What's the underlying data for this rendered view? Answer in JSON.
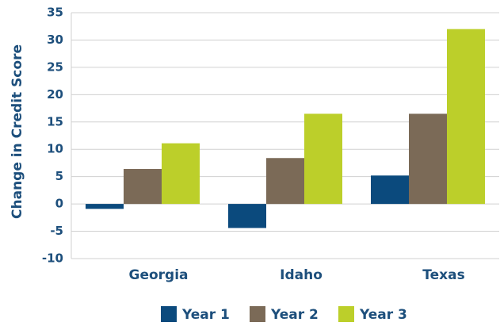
{
  "chart_data": {
    "type": "bar",
    "y_label": "Change in Credit Score",
    "categories": [
      "Georgia",
      "Idaho",
      "Texas"
    ],
    "series": [
      {
        "name": "Year 1",
        "color": "#0b4a7d",
        "values": [
          -0.9,
          -4.4,
          5.2
        ]
      },
      {
        "name": "Year 2",
        "color": "#7b6a57",
        "values": [
          6.4,
          8.4,
          16.5
        ]
      },
      {
        "name": "Year 3",
        "color": "#bccf2a",
        "values": [
          11.1,
          16.5,
          32
        ]
      }
    ],
    "ylim": [
      -10,
      35
    ],
    "yticks": [
      -10,
      -5,
      0,
      5,
      10,
      15,
      20,
      25,
      30,
      35
    ],
    "grid": true
  }
}
